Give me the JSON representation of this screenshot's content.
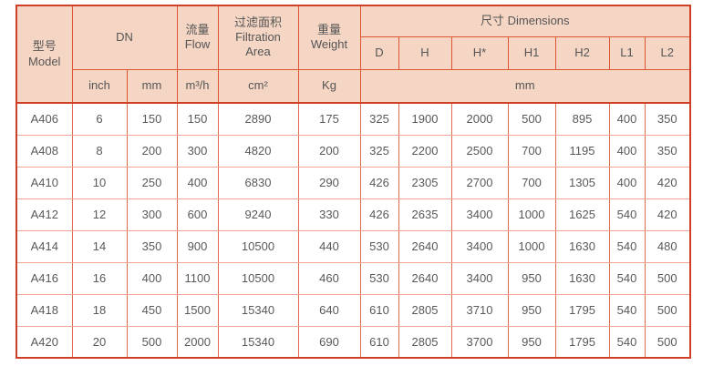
{
  "table": {
    "header": {
      "model_zh": "型号",
      "model_en": "Model",
      "dn": "DN",
      "flow_zh": "流量",
      "flow_en": "Flow",
      "filtration_zh": "过滤面积",
      "filtration_en1": "Filtration",
      "filtration_en2": "Area",
      "weight_zh": "重量",
      "weight_en": "Weight",
      "dimensions": "尺寸 Dimensions",
      "dim_cols": [
        "D",
        "H",
        "H*",
        "H1",
        "H2",
        "L1",
        "L2"
      ],
      "unit_inch": "inch",
      "unit_mm": "mm",
      "unit_flow": "m³/h",
      "unit_area": "cm²",
      "unit_weight": "Kg",
      "unit_dim": "mm"
    },
    "rows": [
      [
        "A406",
        "6",
        "150",
        "150",
        "2890",
        "175",
        "325",
        "1900",
        "2000",
        "500",
        "895",
        "400",
        "350"
      ],
      [
        "A408",
        "8",
        "200",
        "300",
        "4820",
        "200",
        "325",
        "2200",
        "2500",
        "700",
        "1195",
        "400",
        "350"
      ],
      [
        "A410",
        "10",
        "250",
        "400",
        "6830",
        "290",
        "426",
        "2305",
        "2700",
        "700",
        "1305",
        "400",
        "420"
      ],
      [
        "A412",
        "12",
        "300",
        "600",
        "9240",
        "330",
        "426",
        "2635",
        "3400",
        "1000",
        "1625",
        "540",
        "420"
      ],
      [
        "A414",
        "14",
        "350",
        "900",
        "10500",
        "440",
        "530",
        "2640",
        "3400",
        "1000",
        "1630",
        "540",
        "480"
      ],
      [
        "A416",
        "16",
        "400",
        "1100",
        "10500",
        "460",
        "530",
        "2640",
        "3400",
        "950",
        "1630",
        "540",
        "500"
      ],
      [
        "A418",
        "18",
        "450",
        "1500",
        "15340",
        "640",
        "610",
        "2805",
        "3710",
        "950",
        "1795",
        "540",
        "500"
      ],
      [
        "A420",
        "20",
        "500",
        "2000",
        "15340",
        "690",
        "610",
        "2805",
        "3700",
        "950",
        "1795",
        "540",
        "500"
      ]
    ],
    "colors": {
      "header_bg": "#f5d6c4",
      "outer_border": "#cf4026",
      "header_border": "#df5532",
      "body_border_v": "#e06a50",
      "body_border_h": "#f0a496",
      "body_text": "#58595b",
      "header_text": "#555555"
    }
  }
}
